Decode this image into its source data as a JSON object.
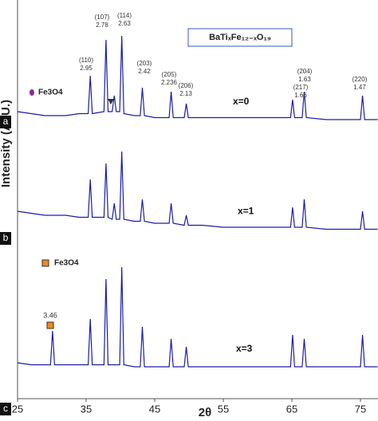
{
  "chart_data": {
    "type": "line",
    "y_label": "Intensity (A. U.)",
    "x_label": "2θ",
    "legend_title": "BaTiₓFe₁₂₋ₓO₁₉",
    "phase_labels": [
      "Fe3O4",
      "Fe3O4"
    ],
    "phase_colors": [
      "#8b2a8f",
      "#f08a1c"
    ],
    "secondary_peak_label": "3.46",
    "panel_labels": [
      "a",
      "b",
      "c"
    ],
    "annotations": [
      {
        "hkl": "(110)",
        "d": "2.95"
      },
      {
        "hkl": "(107)",
        "d": "2.78"
      },
      {
        "hkl": "(114)",
        "d": "2.63"
      },
      {
        "hkl": "(203)",
        "d": "2.42"
      },
      {
        "hkl": "(205)",
        "d": "2.236"
      },
      {
        "hkl": "(206)",
        "d": "2.13"
      },
      {
        "hkl": "(217)",
        "d": "1.66"
      },
      {
        "hkl": "(204)",
        "d": "1.63"
      },
      {
        "hkl": "(220)",
        "d": "1.47"
      }
    ],
    "x": [
      25,
      27,
      29,
      29.8,
      30.1,
      30.4,
      32,
      34,
      35.3,
      35.6,
      35.9,
      37.6,
      37.9,
      38.2,
      38.8,
      39.1,
      39.4,
      39.9,
      40.2,
      40.5,
      42,
      42.9,
      43.2,
      43.5,
      45,
      47.1,
      47.4,
      47.7,
      49.3,
      49.6,
      49.9,
      52,
      55,
      58,
      61,
      64.8,
      65.1,
      65.4,
      66.5,
      66.8,
      67.1,
      70,
      73,
      75,
      75.3,
      75.6,
      77.5
    ],
    "series": [
      {
        "name": "x=0",
        "color": "#1c1ca8",
        "values": [
          72,
          71.5,
          71,
          71,
          71,
          71,
          71,
          71.5,
          71.5,
          81,
          71.5,
          72,
          90,
          72,
          72,
          76,
          72,
          72,
          91,
          71.5,
          71,
          71,
          78,
          71,
          70.5,
          70.5,
          77,
          70.5,
          70.5,
          74,
          70.5,
          70.5,
          70.5,
          70.5,
          70.5,
          70.5,
          75,
          70.5,
          70.5,
          77,
          70.5,
          70,
          70,
          70,
          76,
          70,
          70
        ]
      },
      {
        "name": "x=1",
        "color": "#1c1ca8",
        "values": [
          47,
          46.5,
          46,
          46,
          46,
          46,
          46,
          45.5,
          45.5,
          55,
          45.5,
          45.5,
          59,
          45.5,
          45,
          49,
          45,
          45,
          62,
          45,
          44.5,
          44.5,
          50,
          44.5,
          44,
          44,
          49,
          44,
          43.5,
          46,
          43.5,
          43.5,
          43,
          43,
          43,
          43,
          48,
          43,
          43,
          50,
          43,
          42.5,
          42.5,
          42.5,
          47,
          42.5,
          42.5
        ]
      },
      {
        "name": "x=3",
        "color": "#1c1ca8",
        "values": [
          9,
          8.5,
          8.5,
          8.5,
          17,
          8.5,
          8.5,
          8.5,
          8.5,
          20,
          8.5,
          8.5,
          30,
          8.5,
          8.5,
          8.5,
          8.5,
          8.5,
          33,
          8.5,
          8,
          8,
          18,
          8,
          8,
          8,
          15,
          8,
          8,
          13,
          8,
          8,
          8,
          8,
          8,
          8,
          16,
          8,
          8,
          15,
          8,
          8,
          8,
          8,
          16,
          8,
          8
        ]
      }
    ],
    "xlim": [
      25,
      77.5
    ],
    "ylim": [
      0,
      100
    ],
    "xticks": [
      25,
      35,
      45,
      55,
      65,
      75
    ]
  }
}
